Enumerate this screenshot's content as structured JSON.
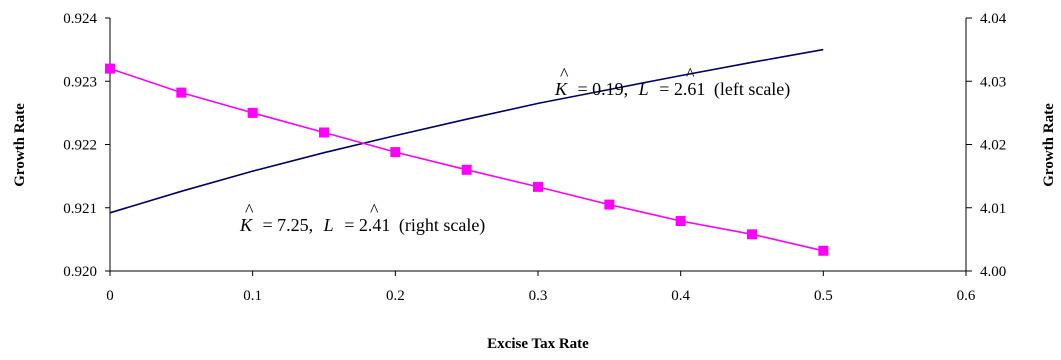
{
  "chart_data": {
    "type": "line",
    "xlabel": "Excise Tax Rate",
    "ylabel_left": "Growth Rate",
    "ylabel_right": "Growth Rate",
    "xlim": [
      0,
      0.6
    ],
    "xticks": [
      "0",
      "0.1",
      "0.2",
      "0.3",
      "0.4",
      "0.5",
      "0.6"
    ],
    "ylim_left": [
      0.92,
      0.924
    ],
    "yticks_left": [
      "0.920",
      "0.921",
      "0.922",
      "0.923",
      "0.924"
    ],
    "ylim_right": [
      4.0,
      4.04
    ],
    "yticks_right": [
      "4.00",
      "4.01",
      "4.02",
      "4.03",
      "4.04"
    ],
    "grid": false,
    "legend": "none",
    "series": [
      {
        "axis": "left",
        "color": "#000066",
        "marker": "none",
        "x": [
          0,
          0.05,
          0.1,
          0.15,
          0.2,
          0.25,
          0.3,
          0.35,
          0.4,
          0.45,
          0.5
        ],
        "values": [
          0.92092,
          0.92126,
          0.92158,
          0.92187,
          0.92214,
          0.9224,
          0.92265,
          0.92287,
          0.92309,
          0.9233,
          0.9235
        ]
      },
      {
        "axis": "right",
        "color": "#ff00ff",
        "marker": "square",
        "x": [
          0,
          0.05,
          0.1,
          0.15,
          0.2,
          0.25,
          0.3,
          0.35,
          0.4,
          0.45,
          0.5
        ],
        "values": [
          4.032,
          4.0282,
          4.025,
          4.0219,
          4.0188,
          4.016,
          4.0133,
          4.0105,
          4.0079,
          4.0058,
          4.0032
        ]
      }
    ],
    "annotations": [
      {
        "series": 0,
        "k_sym": "K",
        "k_val": "= 0.19,",
        "l_sym": "L",
        "l_val": "= 2.61",
        "note": "(left scale)"
      },
      {
        "series": 1,
        "k_sym": "K",
        "k_val": "= 7.25,",
        "l_sym": "L",
        "l_val": "= 2.41",
        "note": "(right scale)"
      }
    ]
  }
}
